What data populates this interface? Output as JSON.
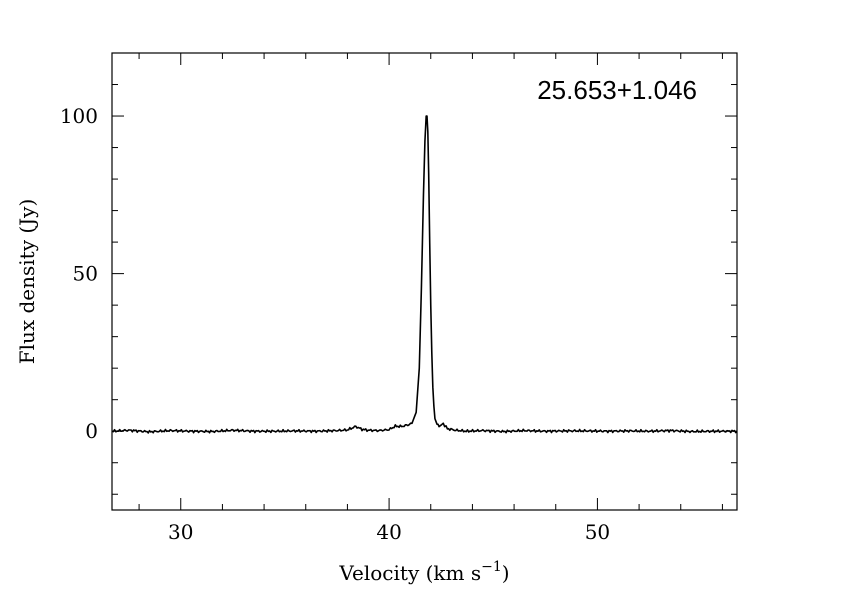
{
  "chart_data": {
    "type": "line",
    "title": "",
    "annotation": "25.653+1.046",
    "xlabel": "Velocity (km s",
    "xlabel_sup": "−1",
    "xlabel_close": ")",
    "ylabel": "Flux density (Jy)",
    "xlim": [
      26.7,
      56.7
    ],
    "ylim": [
      -25,
      120
    ],
    "xticks": [
      30,
      40,
      50
    ],
    "xtick_labels": [
      "30",
      "40",
      "50"
    ],
    "yticks": [
      0,
      50,
      100
    ],
    "ytick_labels": [
      "0",
      "50",
      "100"
    ],
    "x_minor_step": 2,
    "y_minor_step": 10,
    "grid": false,
    "series": [
      {
        "x": [
          26.7,
          27.5,
          28.5,
          29.5,
          30.5,
          31.5,
          32.5,
          33.5,
          34.5,
          35.5,
          36.5,
          37.5,
          38.0,
          38.4,
          38.7,
          39.0,
          39.5,
          40.0,
          40.3,
          40.6,
          40.9,
          41.1,
          41.3,
          41.45,
          41.55,
          41.65,
          41.72,
          41.78,
          41.82,
          41.86,
          41.9,
          41.95,
          42.0,
          42.05,
          42.1,
          42.15,
          42.2,
          42.3,
          42.45,
          42.6,
          42.8,
          43.2,
          43.7,
          44.5,
          45.5,
          46.5,
          47.5,
          48.5,
          49.5,
          50.5,
          51.5,
          52.5,
          53.5,
          54.5,
          55.5,
          56.7
        ],
        "y": [
          0,
          0.3,
          -0.2,
          0.2,
          0,
          -0.1,
          0.3,
          0,
          0,
          0.1,
          0,
          0.2,
          0.4,
          1.5,
          0.6,
          0.3,
          0.2,
          0.5,
          1.6,
          1.5,
          2.0,
          2.5,
          6,
          20,
          45,
          75,
          92,
          100,
          100,
          95,
          82,
          60,
          40,
          25,
          14,
          8,
          4,
          2.2,
          1.7,
          2.4,
          0.8,
          0.3,
          0,
          0.2,
          -0.1,
          0.2,
          0,
          0.1,
          0.1,
          0,
          0.1,
          0,
          0.2,
          -0.1,
          0,
          0
        ]
      }
    ]
  }
}
